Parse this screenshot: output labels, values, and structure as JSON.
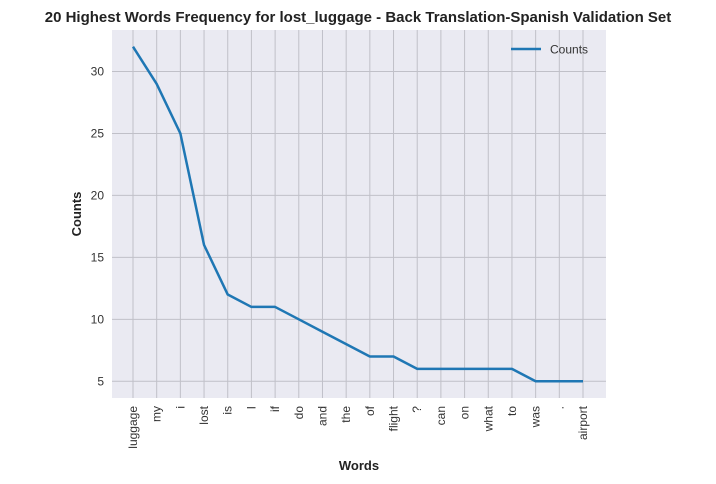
{
  "chart_data": {
    "type": "line",
    "title": "20 Highest Words Frequency for lost_luggage - Back Translation-Spanish Validation Set",
    "xlabel": "Words",
    "ylabel": "Counts",
    "categories": [
      "luggage",
      "my",
      "i",
      "lost",
      "is",
      "I",
      "if",
      "do",
      "and",
      "the",
      "of",
      "flight",
      "?",
      "can",
      "on",
      "what",
      "to",
      "was",
      ".",
      "airport"
    ],
    "series": [
      {
        "name": "Counts",
        "values": [
          32,
          29,
          25,
          16,
          12,
          11,
          11,
          10,
          9,
          8,
          7,
          7,
          6,
          6,
          6,
          6,
          6,
          5,
          5,
          5
        ]
      }
    ],
    "yticks": [
      5,
      10,
      15,
      20,
      25,
      30
    ],
    "ylim": [
      3.65,
      33.35
    ],
    "grid": true,
    "legend_position": "top-right",
    "colors": {
      "line": "#1f77b4",
      "background": "#eaeaf2",
      "grid": "#c0c0c8"
    }
  }
}
